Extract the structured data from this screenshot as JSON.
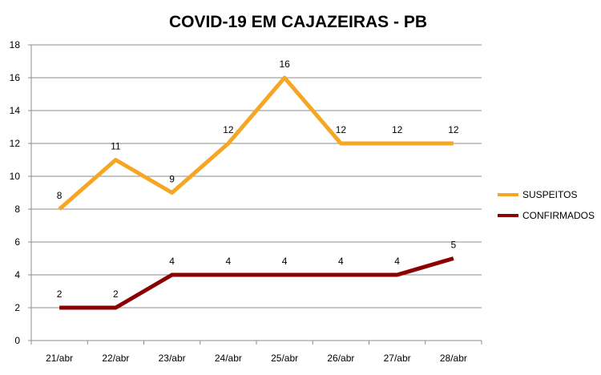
{
  "chart_data": {
    "type": "line",
    "title": "COVID-19 EM CAJAZEIRAS - PB",
    "categories": [
      "21/abr",
      "22/abr",
      "23/abr",
      "24/abr",
      "25/abr",
      "26/abr",
      "27/abr",
      "28/abr"
    ],
    "ylim": [
      0,
      18
    ],
    "yticks": [
      0,
      2,
      4,
      6,
      8,
      10,
      12,
      14,
      16,
      18
    ],
    "grid": true,
    "legend_position": "right",
    "series": [
      {
        "name": "SUSPEITOS",
        "color": "#F5A623",
        "values": [
          8,
          11,
          9,
          12,
          16,
          12,
          12,
          12
        ]
      },
      {
        "name": "CONFIRMADOS",
        "color": "#8B0000",
        "values": [
          2,
          2,
          4,
          4,
          4,
          4,
          4,
          5
        ]
      }
    ]
  }
}
